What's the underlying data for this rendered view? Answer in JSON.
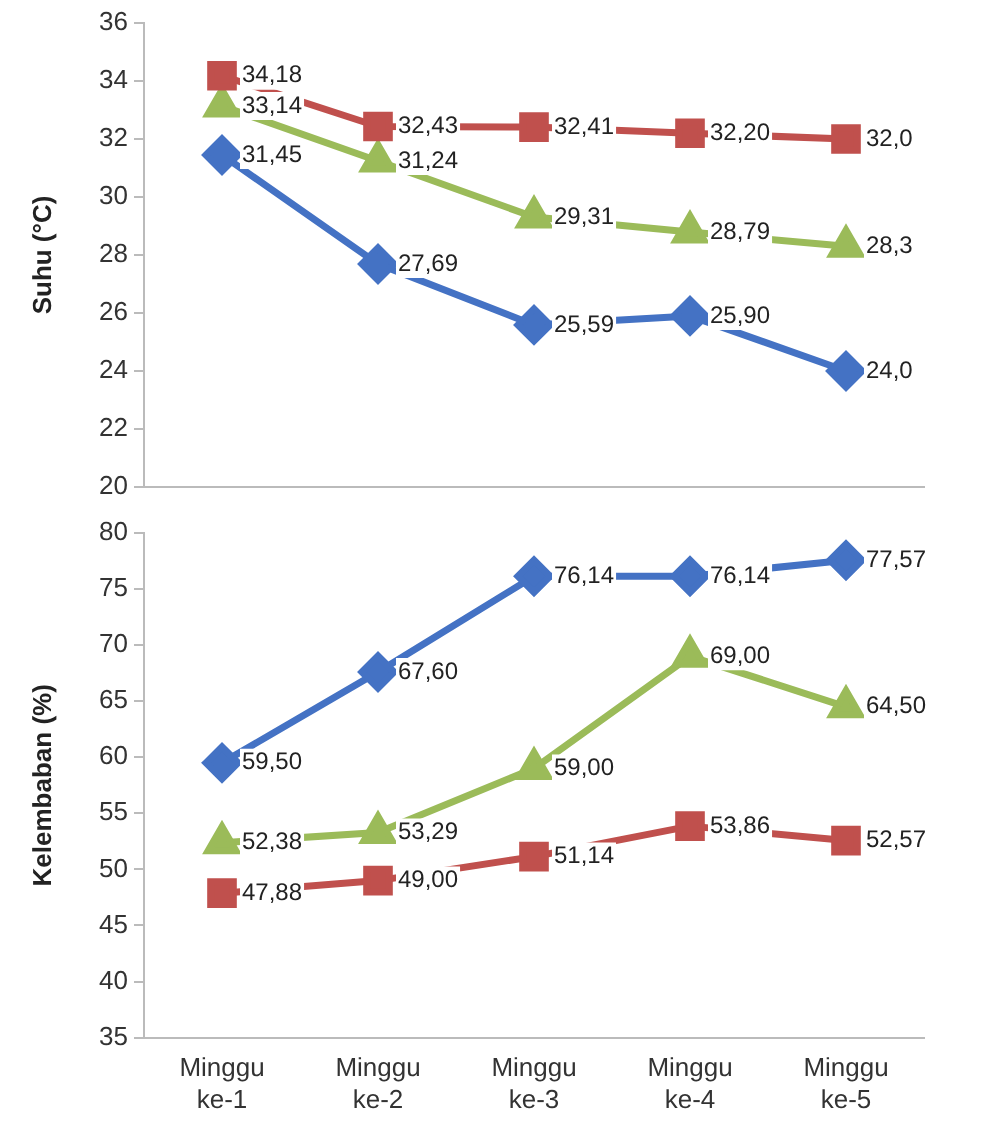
{
  "chart_data": [
    {
      "type": "line",
      "ylabel": "Suhu (°C)",
      "categories": [
        null,
        null,
        null,
        null,
        null
      ],
      "ylim": [
        20,
        36
      ],
      "yticks": [
        20,
        22,
        24,
        26,
        28,
        30,
        32,
        34,
        36
      ],
      "grid": false,
      "legend": false,
      "tick_labels": "y",
      "series": [
        {
          "color": "#4472c4",
          "marker": "diamond",
          "values": [
            31.45,
            27.69,
            25.59,
            25.9,
            24.0
          ],
          "value_labels": [
            "31,45",
            "27,69",
            "25,59",
            "25,90",
            "24,0"
          ]
        },
        {
          "color": "#c0504d",
          "marker": "square",
          "values": [
            34.18,
            32.43,
            32.41,
            32.2,
            32.0
          ],
          "value_labels": [
            "34,18",
            "32,43",
            "32,41",
            "32,20",
            "32,0"
          ]
        },
        {
          "color": "#9bbb59",
          "marker": "triangle",
          "values": [
            33.14,
            31.24,
            29.31,
            28.79,
            28.3
          ],
          "value_labels": [
            "33,14",
            "31,24",
            "29,31",
            "28,79",
            "28,3"
          ]
        }
      ]
    },
    {
      "type": "line",
      "ylabel": "Kelembaban (%)",
      "categories": [
        "Minggu\nke-1",
        "Minggu\nke-2",
        "Minggu\nke-3",
        "Minggu\nke-4",
        "Minggu\nke-5"
      ],
      "ylim": [
        35,
        80
      ],
      "yticks": [
        35,
        40,
        45,
        50,
        55,
        60,
        65,
        70,
        75,
        80
      ],
      "grid": false,
      "legend": false,
      "series": [
        {
          "color": "#4472c4",
          "marker": "diamond",
          "values": [
            59.5,
            67.6,
            76.14,
            76.14,
            77.57
          ],
          "value_labels": [
            "59,50",
            "67,60",
            "76,14",
            "76,14",
            "77,57"
          ]
        },
        {
          "color": "#c0504d",
          "marker": "square",
          "values": [
            47.88,
            49.0,
            51.14,
            53.86,
            52.57
          ],
          "value_labels": [
            "47,88",
            "49,00",
            "51,14",
            "53,86",
            "52,57"
          ]
        },
        {
          "color": "#9bbb59",
          "marker": "triangle",
          "values": [
            52.38,
            53.29,
            59.0,
            69.0,
            64.5
          ],
          "value_labels": [
            "52,38",
            "53,29",
            "59,00",
            "69,00",
            "64,50"
          ]
        }
      ]
    }
  ]
}
